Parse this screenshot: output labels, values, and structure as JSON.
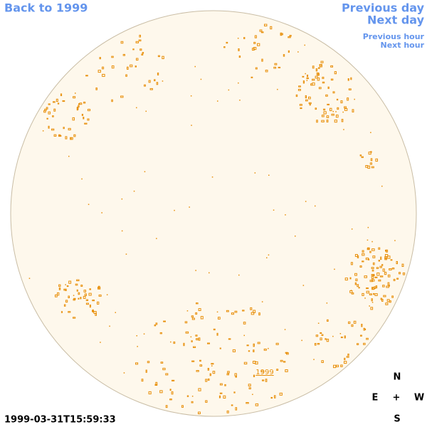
{
  "nav": {
    "back": "Back to 1999",
    "previous_day": "Previous day",
    "next_day": "Next day",
    "previous_hour": "Previous hour",
    "next_hour": "Next hour"
  },
  "timestamp": "1999-03-31T15:59:33",
  "disk_label": "1999",
  "compass": {
    "north": "N",
    "east": "E",
    "center": "+",
    "west": "W",
    "south": "S"
  }
}
